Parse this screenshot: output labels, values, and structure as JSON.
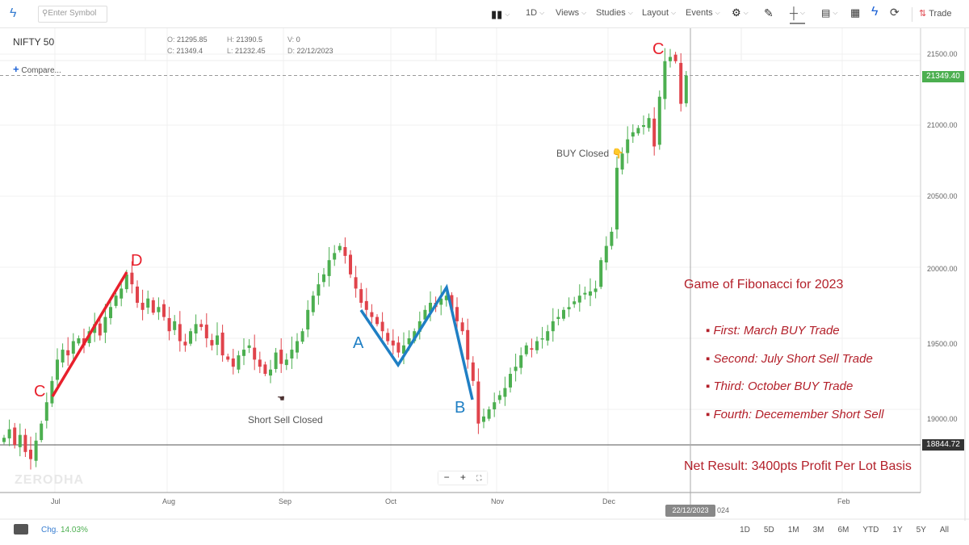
{
  "toolbar": {
    "search_placeholder": "Enter Symbol",
    "interval": "1D",
    "views": "Views",
    "studies": "Studies",
    "layout": "Layout",
    "events": "Events",
    "trade": "Trade"
  },
  "header": {
    "symbol": "NIFTY 50",
    "o_label": "O:",
    "o": "21295.85",
    "h_label": "H:",
    "h": "21390.5",
    "v_label": "V:",
    "v": "0",
    "c_label": "C:",
    "c": "21349.4",
    "l_label": "L:",
    "l": "21232.45",
    "d_label": "D:",
    "d": "22/12/2023",
    "compare": "Compare..."
  },
  "price_axis": [
    "21500.00",
    "21000.00",
    "20500.00",
    "20000.00",
    "19500.00",
    "19000.00"
  ],
  "last_price": "21349.40",
  "line_price": "18844.72",
  "time_axis": [
    "Jul",
    "Aug",
    "Sep",
    "Oct",
    "Nov",
    "Dec",
    "024",
    "Feb"
  ],
  "crosshair_date": "22/12/2023",
  "annotations": {
    "title": "Game of Fibonacci for 2023",
    "items": [
      "▪ First: March BUY Trade",
      "▪ Second: July Short Sell Trade",
      "▪ Third: October BUY Trade",
      "▪ Fourth: Decemember Short Sell"
    ],
    "net": "Net Result: 3400pts Profit Per Lot Basis",
    "buy_closed": "BUY Closed",
    "short_closed": "Short Sell Closed",
    "pattern_labels": {
      "c1": "C",
      "d": "D",
      "a": "A",
      "b": "B",
      "c2": "C"
    }
  },
  "watermark": "ZERODHA",
  "colors": {
    "up": "#4caf50",
    "down": "#e0434b",
    "red_line": "#e8202c",
    "blue_line": "#1f7fc4",
    "annotation": "#b3202a",
    "last_price_bg": "#4caf50"
  },
  "footer": {
    "chg_label": "Chg.",
    "chg": "14.03%",
    "ranges": [
      "1D",
      "5D",
      "1M",
      "3M",
      "6M",
      "YTD",
      "1Y",
      "5Y",
      "All"
    ]
  },
  "chart_data": {
    "type": "candlestick",
    "symbol": "NIFTY 50",
    "ylim": [
      18700,
      21600
    ],
    "closes": [
      18800,
      18860,
      18750,
      18820,
      18700,
      18650,
      18780,
      18900,
      19050,
      19200,
      19350,
      19420,
      19380,
      19480,
      19500,
      19450,
      19550,
      19600,
      19520,
      19650,
      19720,
      19800,
      19850,
      19950,
      19880,
      19750,
      19700,
      19780,
      19680,
      19720,
      19650,
      19550,
      19620,
      19480,
      19450,
      19550,
      19600,
      19580,
      19500,
      19450,
      19520,
      19380,
      19350,
      19300,
      19380,
      19420,
      19450,
      19350,
      19300,
      19250,
      19280,
      19400,
      19320,
      19350,
      19420,
      19480,
      19550,
      19700,
      19800,
      19880,
      19950,
      20050,
      20100,
      20150,
      20080,
      19950,
      19850,
      19750,
      19700,
      19650,
      19600,
      19550,
      19480,
      19450,
      19400,
      19450,
      19500,
      19550,
      19620,
      19700,
      19750,
      19720,
      19780,
      19800,
      19700,
      19620,
      19550,
      19350,
      19200,
      18900,
      18950,
      19000,
      19050,
      19100,
      19150,
      19250,
      19300,
      19380,
      19450,
      19420,
      19480,
      19500,
      19550,
      19620,
      19650,
      19700,
      19720,
      19760,
      19800,
      19820,
      19830,
      19850,
      20050,
      20150,
      20250,
      20700,
      20800,
      20900,
      20950,
      20980,
      21000,
      21050,
      20850,
      21200,
      21450,
      21480,
      21450,
      21150,
      21349
    ]
  }
}
